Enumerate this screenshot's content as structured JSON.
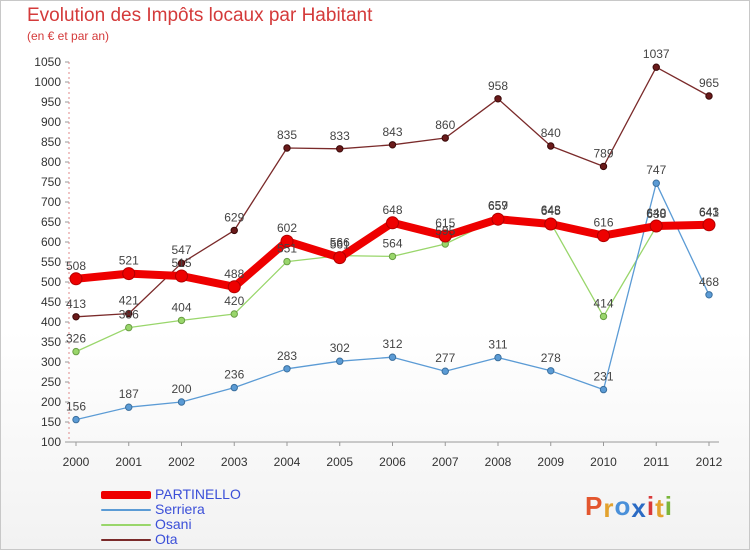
{
  "header": {
    "title": "Evolution des Impôts locaux par Habitant",
    "subtitle": "(en € et par an)"
  },
  "logo": {
    "letters": [
      "P",
      "r",
      "o",
      "x",
      "i",
      "t",
      "i"
    ],
    "colors": [
      "#e3562e",
      "#e3a22e",
      "#4a90d9",
      "#2b6bc4",
      "#d93a3a",
      "#e3a22e",
      "#7ab63a"
    ]
  },
  "chart_data": {
    "type": "line",
    "title": "Evolution des Impôts locaux par Habitant",
    "subtitle": "(en € et par an)",
    "x": [
      "2000",
      "2001",
      "2002",
      "2003",
      "2004",
      "2005",
      "2006",
      "2007",
      "2008",
      "2009",
      "2010",
      "2011",
      "2012"
    ],
    "ylim": [
      100,
      1050
    ],
    "yticks": [
      100,
      150,
      200,
      250,
      300,
      350,
      400,
      450,
      500,
      550,
      600,
      650,
      700,
      750,
      800,
      850,
      900,
      950,
      1000,
      1050
    ],
    "grid": false,
    "legend_position": "bottom-left",
    "series": [
      {
        "name": "PARTINELLO",
        "color": "#ee0000",
        "values": [
          508,
          521,
          515,
          488,
          602,
          561,
          648,
          615,
          657,
          645,
          616,
          640,
          643
        ]
      },
      {
        "name": "Serriera",
        "color": "#5b9bd5",
        "values": [
          156,
          187,
          200,
          236,
          283,
          302,
          312,
          277,
          311,
          278,
          231,
          747,
          468
        ]
      },
      {
        "name": "Osani",
        "color": "#99d66b",
        "values": [
          326,
          386,
          404,
          420,
          551,
          566,
          564,
          595,
          659,
          648,
          414,
          638,
          641
        ]
      },
      {
        "name": "Ota",
        "color": "#7a2a2a",
        "values": [
          413,
          421,
          547,
          629,
          835,
          833,
          843,
          860,
          958,
          840,
          789,
          1037,
          965
        ]
      }
    ]
  }
}
